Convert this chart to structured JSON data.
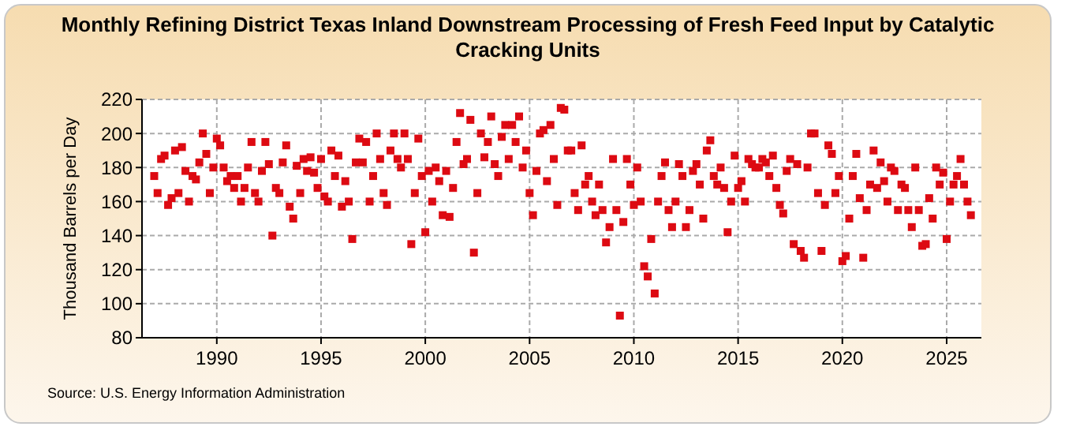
{
  "chart_data": {
    "type": "scatter",
    "title": "Monthly Refining District Texas Inland Downstream Processing of Fresh Feed Input by Catalytic Cracking Units",
    "ylabel": "Thousand Barrels per Day",
    "annotations": [
      "Source: U.S. Energy Information Administration"
    ],
    "xlim": [
      "1986-06",
      "2026-09"
    ],
    "xticks": [
      "1990",
      "1995",
      "2000",
      "2005",
      "2010",
      "2015",
      "2020",
      "2025"
    ],
    "ylim": [
      80,
      220
    ],
    "yticks": [
      80,
      100,
      120,
      140,
      160,
      180,
      200,
      220
    ],
    "grid": true,
    "marker": "square",
    "series": [
      {
        "color": "#dd0a12",
        "x": [
          "1987-01",
          "1987-03",
          "1987-05",
          "1987-07",
          "1987-09",
          "1987-11",
          "1988-01",
          "1988-03",
          "1988-05",
          "1988-07",
          "1988-09",
          "1988-11",
          "1989-01",
          "1989-03",
          "1989-05",
          "1989-07",
          "1989-09",
          "1989-11",
          "1990-01",
          "1990-03",
          "1990-05",
          "1990-07",
          "1990-09",
          "1990-11",
          "1991-01",
          "1991-03",
          "1991-05",
          "1991-07",
          "1991-09",
          "1991-11",
          "1992-01",
          "1992-03",
          "1992-05",
          "1992-07",
          "1992-09",
          "1992-11",
          "1993-01",
          "1993-03",
          "1993-05",
          "1993-07",
          "1993-09",
          "1993-11",
          "1994-01",
          "1994-03",
          "1994-05",
          "1994-07",
          "1994-09",
          "1994-11",
          "1995-01",
          "1995-03",
          "1995-05",
          "1995-07",
          "1995-09",
          "1995-11",
          "1996-01",
          "1996-03",
          "1996-05",
          "1996-07",
          "1996-09",
          "1996-11",
          "1997-01",
          "1997-03",
          "1997-05",
          "1997-07",
          "1997-09",
          "1997-11",
          "1998-01",
          "1998-03",
          "1998-05",
          "1998-07",
          "1998-09",
          "1998-11",
          "1999-01",
          "1999-03",
          "1999-05",
          "1999-07",
          "1999-09",
          "1999-11",
          "2000-01",
          "2000-03",
          "2000-05",
          "2000-07",
          "2000-09",
          "2000-11",
          "2001-01",
          "2001-03",
          "2001-05",
          "2001-07",
          "2001-09",
          "2001-11",
          "2002-01",
          "2002-03",
          "2002-05",
          "2002-07",
          "2002-09",
          "2002-11",
          "2003-01",
          "2003-03",
          "2003-05",
          "2003-07",
          "2003-09",
          "2003-11",
          "2004-01",
          "2004-03",
          "2004-05",
          "2004-07",
          "2004-09",
          "2004-11",
          "2005-01",
          "2005-03",
          "2005-05",
          "2005-07",
          "2005-09",
          "2005-11",
          "2006-01",
          "2006-03",
          "2006-05",
          "2006-07",
          "2006-09",
          "2006-11",
          "2007-01",
          "2007-03",
          "2007-05",
          "2007-07",
          "2007-09",
          "2007-11",
          "2008-01",
          "2008-03",
          "2008-05",
          "2008-07",
          "2008-09",
          "2008-11",
          "2009-01",
          "2009-03",
          "2009-05",
          "2009-07",
          "2009-09",
          "2009-11",
          "2010-01",
          "2010-03",
          "2010-05",
          "2010-07",
          "2010-09",
          "2010-11",
          "2011-01",
          "2011-03",
          "2011-05",
          "2011-07",
          "2011-09",
          "2011-11",
          "2012-01",
          "2012-03",
          "2012-05",
          "2012-07",
          "2012-09",
          "2012-11",
          "2013-01",
          "2013-03",
          "2013-05",
          "2013-07",
          "2013-09",
          "2013-11",
          "2014-01",
          "2014-03",
          "2014-05",
          "2014-07",
          "2014-09",
          "2014-11",
          "2015-01",
          "2015-03",
          "2015-05",
          "2015-07",
          "2015-09",
          "2015-11",
          "2016-01",
          "2016-03",
          "2016-05",
          "2016-07",
          "2016-09",
          "2016-11",
          "2017-01",
          "2017-03",
          "2017-05",
          "2017-07",
          "2017-09",
          "2017-11",
          "2018-01",
          "2018-03",
          "2018-05",
          "2018-07",
          "2018-09",
          "2018-11",
          "2019-01",
          "2019-03",
          "2019-05",
          "2019-07",
          "2019-09",
          "2019-11",
          "2020-01",
          "2020-03",
          "2020-05",
          "2020-07",
          "2020-09",
          "2020-11",
          "2021-01",
          "2021-03",
          "2021-05",
          "2021-07",
          "2021-09",
          "2021-11",
          "2022-01",
          "2022-03",
          "2022-05",
          "2022-07",
          "2022-09",
          "2022-11",
          "2023-01",
          "2023-03",
          "2023-05",
          "2023-07",
          "2023-09",
          "2023-11",
          "2024-01",
          "2024-03",
          "2024-05",
          "2024-07",
          "2024-09",
          "2024-11",
          "2025-01",
          "2025-03",
          "2025-05",
          "2025-07",
          "2025-09",
          "2025-11",
          "2026-01",
          "2026-03"
        ],
        "values": [
          175,
          165,
          185,
          187,
          158,
          162,
          190,
          165,
          192,
          178,
          160,
          175,
          173,
          183,
          200,
          188,
          165,
          180,
          197,
          193,
          180,
          172,
          175,
          168,
          175,
          160,
          168,
          180,
          195,
          165,
          160,
          178,
          195,
          182,
          140,
          168,
          165,
          183,
          193,
          157,
          150,
          181,
          165,
          185,
          178,
          186,
          177,
          168,
          185,
          163,
          160,
          190,
          175,
          187,
          157,
          172,
          160,
          138,
          183,
          197,
          183,
          195,
          160,
          175,
          200,
          185,
          165,
          158,
          190,
          200,
          185,
          180,
          200,
          185,
          135,
          165,
          197,
          175,
          142,
          178,
          160,
          180,
          172,
          152,
          178,
          151,
          168,
          195,
          212,
          182,
          185,
          208,
          130,
          165,
          200,
          186,
          195,
          210,
          182,
          175,
          198,
          205,
          185,
          205,
          195,
          210,
          180,
          190,
          165,
          152,
          178,
          200,
          202,
          172,
          205,
          185,
          158,
          215,
          214,
          190,
          190,
          165,
          155,
          193,
          170,
          175,
          160,
          152,
          170,
          155,
          136,
          145,
          185,
          155,
          93,
          148,
          185,
          170,
          158,
          180,
          160,
          122,
          116,
          138,
          106,
          160,
          175,
          183,
          155,
          145,
          160,
          182,
          175,
          145,
          155,
          178,
          182,
          170,
          150,
          190,
          196,
          175,
          170,
          180,
          168,
          142,
          160,
          187,
          168,
          172,
          160,
          185,
          182,
          180,
          180,
          185,
          183,
          175,
          187,
          168,
          158,
          153,
          178,
          185,
          135,
          182,
          131,
          127,
          180,
          200,
          200,
          165,
          131,
          158,
          193,
          188,
          165,
          175,
          125,
          128,
          150,
          175,
          188,
          162,
          127,
          155,
          170,
          190,
          168,
          183,
          172,
          160,
          180,
          178,
          155,
          170,
          168,
          155,
          145,
          180,
          155,
          134,
          135,
          162,
          150,
          180,
          170,
          177,
          138,
          160,
          170,
          175,
          185,
          170,
          160,
          152
        ]
      }
    ]
  }
}
